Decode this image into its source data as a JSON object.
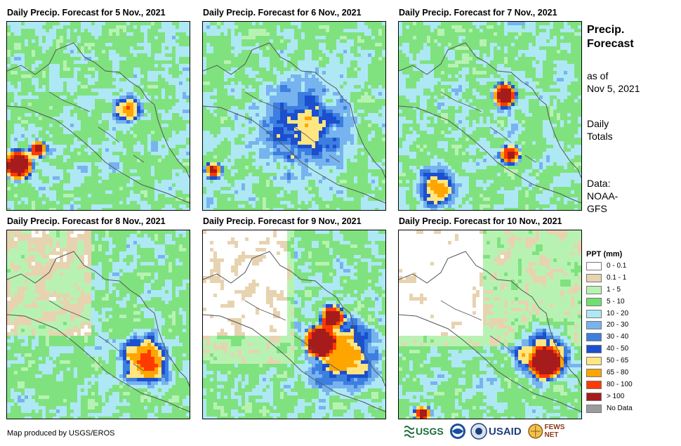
{
  "panels": [
    {
      "title": "Daily Precip. Forecast for 5 Nov., 2021",
      "day": 5
    },
    {
      "title": "Daily Precip. Forecast for 6 Nov., 2021",
      "day": 6
    },
    {
      "title": "Daily Precip. Forecast for 7 Nov., 2021",
      "day": 7
    },
    {
      "title": "Daily Precip. Forecast for 8 Nov., 2021",
      "day": 8
    },
    {
      "title": "Daily Precip. Forecast for 9 Nov., 2021",
      "day": 9
    },
    {
      "title": "Daily Precip. Forecast for 10 Nov., 2021",
      "day": 10
    }
  ],
  "side": {
    "title_line1": "Precip.",
    "title_line2": "Forecast",
    "asof_line1": "as of",
    "asof_line2": "Nov 5, 2021",
    "daily_line1": "Daily",
    "daily_line2": "Totals",
    "data_line1": "Data:",
    "data_line2": "NOAA-",
    "data_line3": "GFS"
  },
  "legend": {
    "title": "PPT (mm)",
    "items": [
      {
        "label": "0 - 0.1",
        "color": "#ffffff"
      },
      {
        "label": "0.1 - 1",
        "color": "#e8d3b0"
      },
      {
        "label": "1 - 5",
        "color": "#b8f2b2"
      },
      {
        "label": "5 - 10",
        "color": "#6fe06f"
      },
      {
        "label": "10 - 20",
        "color": "#aee8f5"
      },
      {
        "label": "20 - 30",
        "color": "#77b3ee"
      },
      {
        "label": "30 - 40",
        "color": "#3d7fe0"
      },
      {
        "label": "40 - 50",
        "color": "#1b4fd0"
      },
      {
        "label": "50 - 65",
        "color": "#ffe680"
      },
      {
        "label": "65 - 80",
        "color": "#ffa500"
      },
      {
        "label": "80 - 100",
        "color": "#ff3a00"
      },
      {
        "label": "> 100",
        "color": "#a61c1c"
      },
      {
        "label": "No Data",
        "color": "#9b9b9b"
      }
    ]
  },
  "credit": "Map produced by USGS/EROS",
  "logos": [
    {
      "name": "usgs-logo",
      "text": "USGS"
    },
    {
      "name": "noaa-logo",
      "text": ""
    },
    {
      "name": "usaid-logo",
      "text": "USAID"
    },
    {
      "name": "fews-net-logo",
      "text": "FEWS NET"
    }
  ]
}
